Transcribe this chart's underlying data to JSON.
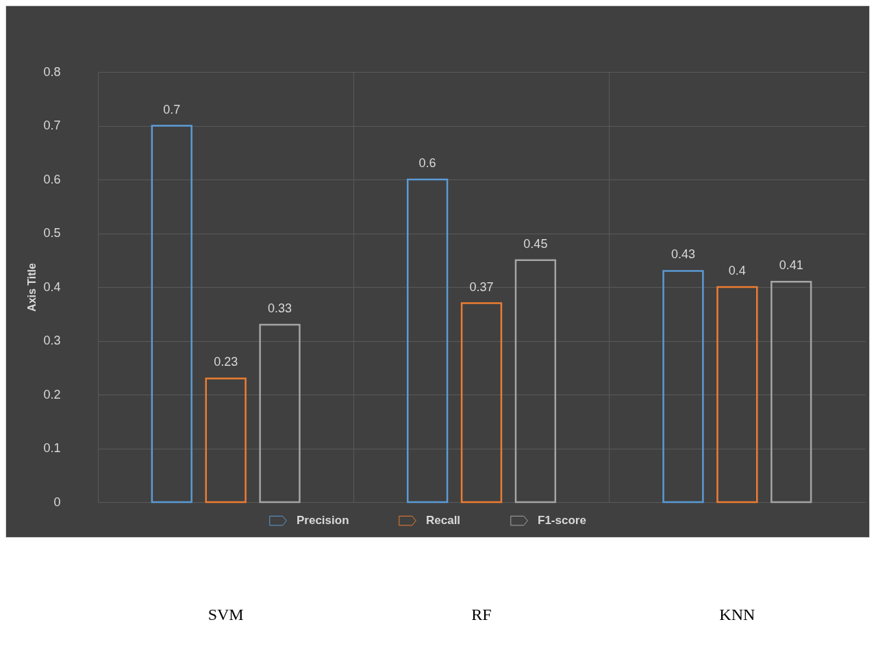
{
  "chart_data": {
    "type": "bar",
    "ylabel": "Axis Title",
    "categories": [
      "SVM",
      "RF",
      "KNN"
    ],
    "series": [
      {
        "name": "Precision",
        "color": "#5b9bd5",
        "values": [
          0.7,
          0.6,
          0.43
        ]
      },
      {
        "name": "Recall",
        "color": "#ed7d31",
        "values": [
          0.23,
          0.37,
          0.4
        ]
      },
      {
        "name": "F1-score",
        "color": "#a5a5a5",
        "values": [
          0.33,
          0.45,
          0.41
        ]
      }
    ],
    "ylim": [
      0,
      0.8
    ],
    "yticks": [
      0,
      0.1,
      0.2,
      0.3,
      0.4,
      0.5,
      0.6,
      0.7,
      0.8
    ],
    "grid": true,
    "legend": "bottom",
    "data_labels": true
  }
}
